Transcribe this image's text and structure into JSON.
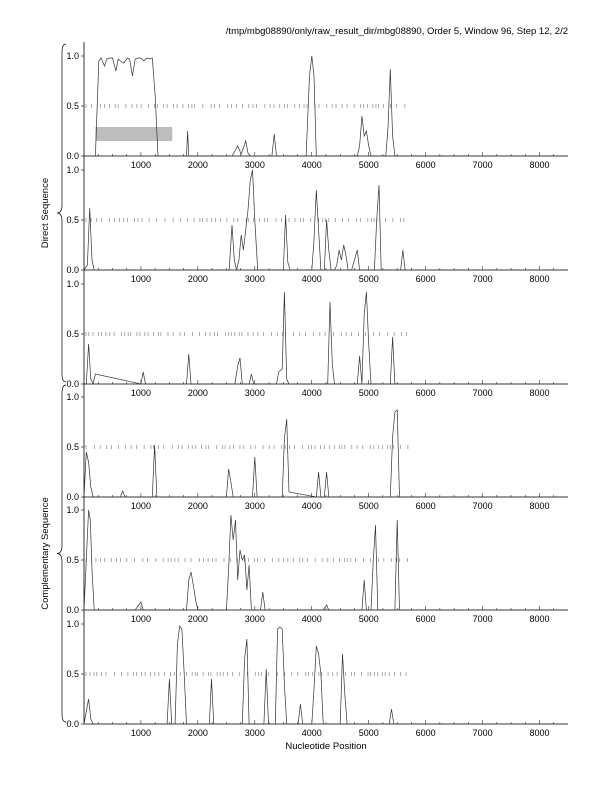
{
  "page": {
    "title": "/tmp/mbg08890/only/raw_result_dir/mbg08890, Order 5, Window 96, Step 12, 2/2"
  },
  "groups": [
    {
      "label": "Direct Sequence",
      "panels": [
        0,
        1,
        2
      ]
    },
    {
      "label": "Complementary Sequence",
      "panels": [
        3,
        4,
        5
      ]
    }
  ],
  "chart_data": {
    "type": "line",
    "xlabel": "Nucleotide Position",
    "xlim": [
      0,
      8500
    ],
    "ylim": [
      0,
      1
    ],
    "x_ticks": [
      1000,
      2000,
      3000,
      4000,
      5000,
      6000,
      7000,
      8000
    ],
    "y_ticks": [
      "0.0",
      "0.5",
      "1.0"
    ],
    "panels": [
      {
        "series": [
          {
            "x": [
              0,
              200,
              260,
              300,
              360,
              400,
              450,
              500,
              560,
              600,
              640,
              700,
              760,
              800,
              850,
              900,
              960,
              1000,
              1050,
              1100,
              1150,
              1200,
              1250,
              1300,
              1800,
              1820,
              1840,
              1880,
              2600,
              2650,
              2700,
              2760,
              2800,
              2840,
              2880,
              2920,
              3000,
              3300,
              3340,
              3380,
              3420,
              3900,
              3960,
              4000,
              4040,
              4080,
              4140,
              4800,
              4840,
              4880,
              4920,
              4960,
              5000,
              5040,
              5300,
              5340,
              5380,
              5420,
              5460,
              8500
            ],
            "y": [
              0,
              0,
              0.95,
              0.98,
              0.9,
              0.97,
              0.98,
              0.98,
              0.85,
              0.97,
              0.95,
              0.93,
              0.98,
              0.97,
              0.8,
              0.97,
              0.98,
              0.98,
              0.95,
              0.98,
              0.97,
              0.98,
              0.6,
              0,
              0,
              0.25,
              0,
              0,
              0,
              0.05,
              0.1,
              0.02,
              0.08,
              0.15,
              0.03,
              0,
              0,
              0,
              0.22,
              0,
              0,
              0,
              0.8,
              1.0,
              0.8,
              0,
              0,
              0,
              0.1,
              0.4,
              0.2,
              0.25,
              0.1,
              0,
              0,
              0.3,
              0.87,
              0.2,
              0,
              0
            ]
          }
        ],
        "highlight": {
          "x": [
            200,
            1550
          ],
          "y": [
            0.15,
            0.29
          ]
        }
      },
      {
        "series": [
          {
            "x": [
              0,
              60,
              100,
              140,
              180,
              1400,
              2550,
              2600,
              2640,
              2680,
              2720,
              2760,
              2800,
              2840,
              2880,
              2920,
              2960,
              3000,
              3050,
              3500,
              3540,
              3580,
              3620,
              4000,
              4040,
              4080,
              4120,
              4160,
              4220,
              4260,
              4300,
              4340,
              4400,
              4440,
              4480,
              4520,
              4560,
              4600,
              4640,
              4700,
              4760,
              4800,
              4840,
              5100,
              5140,
              5180,
              5220,
              5560,
              5600,
              5640,
              8500
            ],
            "y": [
              0,
              0.05,
              0.62,
              0.1,
              0,
              0,
              0,
              0.45,
              0.1,
              0,
              0.1,
              0.35,
              0.2,
              0.4,
              0.6,
              0.9,
              1.0,
              0.5,
              0,
              0,
              0.55,
              0.08,
              0,
              0,
              0.3,
              0.8,
              0.4,
              0,
              0,
              0.5,
              0.2,
              0,
              0,
              0.05,
              0.2,
              0.1,
              0.25,
              0.15,
              0,
              0,
              0.12,
              0.2,
              0,
              0,
              0.5,
              0.85,
              0,
              0,
              0.2,
              0,
              0
            ]
          }
        ]
      },
      {
        "series": [
          {
            "x": [
              0,
              40,
              80,
              120,
              160,
              200,
              1000,
              1040,
              1080,
              1800,
              1840,
              1880,
              2650,
              2700,
              2740,
              2780,
              2900,
              2940,
              2980,
              3380,
              3420,
              3480,
              3520,
              3560,
              3600,
              4280,
              4320,
              4360,
              4400,
              4800,
              4840,
              4880,
              4920,
              4960,
              5000,
              5040,
              5380,
              5420,
              5460,
              8500
            ],
            "y": [
              0,
              0,
              0.4,
              0.05,
              0,
              0.1,
              0,
              0.12,
              0,
              0,
              0.3,
              0,
              0,
              0.18,
              0.26,
              0,
              0,
              0.1,
              0,
              0,
              0.12,
              0.15,
              0.92,
              0.05,
              0,
              0,
              0.82,
              0.2,
              0,
              0,
              0.28,
              0,
              0.7,
              0.92,
              0.4,
              0,
              0,
              0.47,
              0,
              0
            ]
          }
        ]
      },
      {
        "series": [
          {
            "x": [
              0,
              40,
              80,
              120,
              160,
              640,
              680,
              720,
              1200,
              1240,
              1280,
              2500,
              2540,
              2580,
              2620,
              2960,
              3000,
              3040,
              3480,
              3520,
              3560,
              3600,
              4080,
              4120,
              4160,
              4220,
              4260,
              4300,
              5380,
              5420,
              5460,
              5500,
              5540,
              8500
            ],
            "y": [
              0,
              0.45,
              0.35,
              0.1,
              0,
              0,
              0.06,
              0,
              0,
              0.52,
              0,
              0,
              0.28,
              0.15,
              0,
              0,
              0.4,
              0,
              0,
              0.58,
              0.78,
              0.05,
              0,
              0.25,
              0,
              0,
              0.25,
              0,
              0,
              0.6,
              0.85,
              0.87,
              0,
              0
            ]
          }
        ]
      },
      {
        "series": [
          {
            "x": [
              0,
              40,
              80,
              110,
              140,
              180,
              900,
              960,
              1000,
              1040,
              1500,
              1800,
              1840,
              1880,
              1920,
              1960,
              2000,
              2500,
              2540,
              2580,
              2620,
              2660,
              2700,
              2740,
              2780,
              2820,
              2860,
              2900,
              2940,
              3100,
              3140,
              3180,
              4200,
              4260,
              4300,
              4880,
              4920,
              4960,
              5040,
              5080,
              5120,
              5160,
              5460,
              5500,
              5540,
              8500
            ],
            "y": [
              0,
              0.5,
              1.0,
              0.9,
              0.4,
              0,
              0,
              0.05,
              0.08,
              0,
              0,
              0,
              0.3,
              0.38,
              0.25,
              0.1,
              0,
              0,
              0.4,
              0.95,
              0.7,
              0.9,
              0.3,
              0.6,
              0.5,
              0.55,
              0.2,
              0.45,
              0,
              0,
              0.18,
              0,
              0,
              0.05,
              0,
              0,
              0.3,
              0,
              0,
              0.5,
              0.85,
              0,
              0,
              0.9,
              0,
              0
            ]
          }
        ]
      },
      {
        "series": [
          {
            "x": [
              0,
              80,
              120,
              160,
              1460,
              1500,
              1540,
              1600,
              1640,
              1680,
              1720,
              1760,
              1800,
              2200,
              2240,
              2280,
              2780,
              2820,
              2860,
              2900,
              3160,
              3200,
              3240,
              3360,
              3400,
              3440,
              3480,
              3520,
              3560,
              3760,
              3800,
              3840,
              4000,
              4040,
              4080,
              4120,
              4160,
              4200,
              4500,
              4540,
              4580,
              4620,
              5360,
              5400,
              5440,
              8500
            ],
            "y": [
              0,
              0.25,
              0.05,
              0,
              0,
              0.45,
              0,
              0,
              0.8,
              0.98,
              0.95,
              0.5,
              0,
              0,
              0.45,
              0,
              0,
              0.65,
              0.85,
              0,
              0,
              0.55,
              0,
              0,
              0.95,
              0.97,
              0.95,
              0.4,
              0,
              0,
              0.2,
              0,
              0,
              0.35,
              0.78,
              0.7,
              0.5,
              0,
              0,
              0.7,
              0.3,
              0,
              0,
              0.15,
              0,
              0
            ]
          }
        ]
      }
    ]
  }
}
